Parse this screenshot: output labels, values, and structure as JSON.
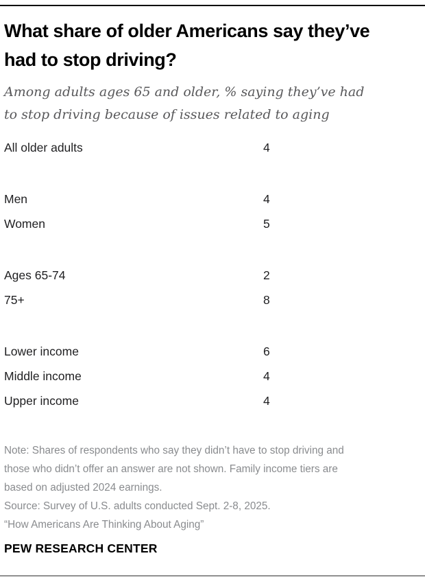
{
  "chart_data": {
    "type": "table",
    "title": "What share of older Americans say they’ve had to stop driving?",
    "subtitle": "Among adults ages 65 and older, % saying they’ve had to stop driving because of issues related to aging",
    "groups": [
      {
        "rows": [
          {
            "label": "All older adults",
            "value": 4
          }
        ]
      },
      {
        "rows": [
          {
            "label": "Men",
            "value": 4
          },
          {
            "label": "Women",
            "value": 5
          }
        ]
      },
      {
        "rows": [
          {
            "label": "Ages 65-74",
            "value": 2
          },
          {
            "label": "75+",
            "value": 8
          }
        ]
      },
      {
        "rows": [
          {
            "label": "Lower income",
            "value": 6
          },
          {
            "label": "Middle income",
            "value": 4
          },
          {
            "label": "Upper income",
            "value": 4
          }
        ]
      }
    ],
    "note": "Note: Shares of respondents who say they didn’t have to stop driving and those who didn’t offer an answer are not shown. Family income tiers are based on adjusted 2024 earnings.",
    "source": "Source: Survey of U.S. adults conducted Sept. 2-8, 2025.",
    "report_title": "“How Americans Are Thinking About Aging”",
    "layout_hints": {
      "value_column_x": 384,
      "grid": "off",
      "accent_colors": {
        "rule_top": "#000000",
        "rule_bottom": "#8f8f8f",
        "subtitle_gray": "#58585a",
        "footnote_gray": "#898b8e"
      }
    }
  },
  "branding": {
    "label": "PEW RESEARCH CENTER"
  }
}
